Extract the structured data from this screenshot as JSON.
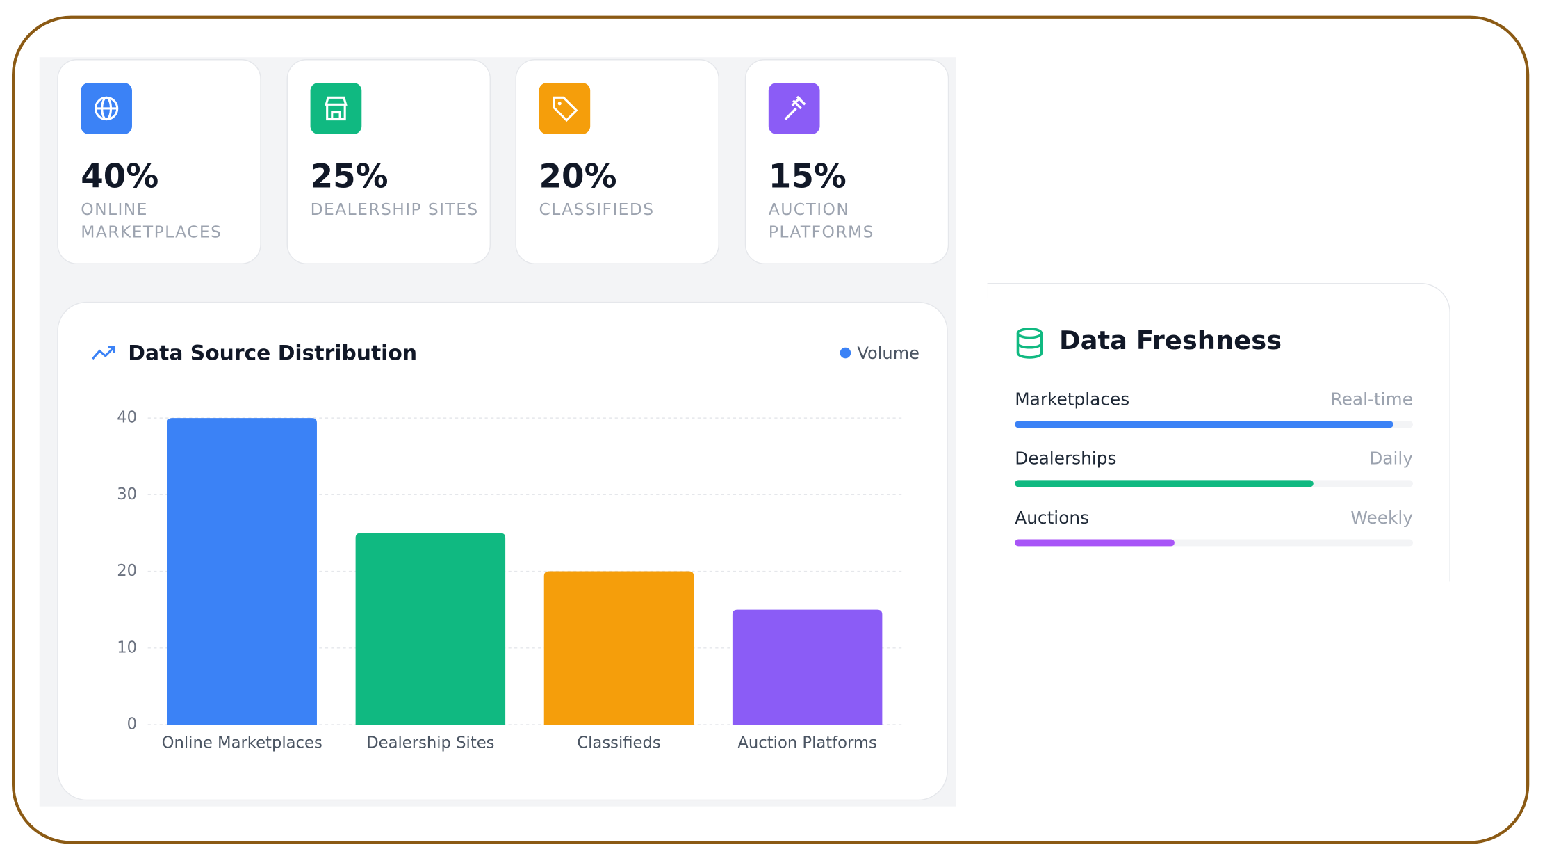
{
  "cards": [
    {
      "value": "40%",
      "label": "ONLINE MARKETPLACES",
      "color": "#3b82f6"
    },
    {
      "value": "25%",
      "label": "DEALERSHIP SITES",
      "color": "#10b981"
    },
    {
      "value": "20%",
      "label": "CLASSIFIEDS",
      "color": "#f59e0b"
    },
    {
      "value": "15%",
      "label": "AUCTION PLATFORMS",
      "color": "#8b5cf6"
    }
  ],
  "chart_data": {
    "type": "bar",
    "title": "Data Source Distribution",
    "categories": [
      "Online Marketplaces",
      "Dealership Sites",
      "Classifieds",
      "Auction Platforms"
    ],
    "series": [
      {
        "name": "Volume",
        "color": "#3b82f6",
        "values": [
          40,
          25,
          20,
          15
        ]
      }
    ],
    "colors": [
      "#3b82f6",
      "#10b981",
      "#f59e0b",
      "#8b5cf6"
    ],
    "ylim": [
      0,
      40
    ],
    "yticks": [
      0,
      10,
      20,
      30,
      40
    ],
    "grid": true
  },
  "freshness": {
    "title": "Data Freshness",
    "rows": [
      {
        "label": "Marketplaces",
        "status": "Real-time",
        "fill": 95,
        "color": "#3b82f6"
      },
      {
        "label": "Dealerships",
        "status": "Daily",
        "fill": 75,
        "color": "#10b981"
      },
      {
        "label": "Auctions",
        "status": "Weekly",
        "fill": 40,
        "color": "#a855f7"
      }
    ]
  }
}
